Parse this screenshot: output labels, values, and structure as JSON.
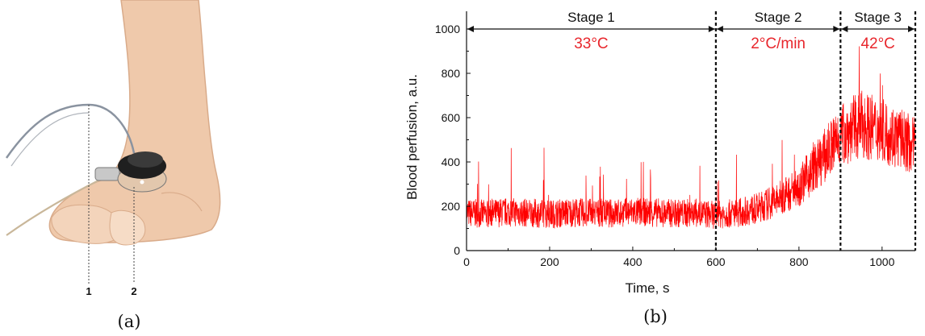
{
  "panels": {
    "a": {
      "caption": "(a)",
      "sensor_labels": [
        "1",
        "2"
      ]
    },
    "b": {
      "caption": "(b)"
    }
  },
  "chart_data": {
    "type": "line",
    "title": "",
    "xlabel": "Time, s",
    "ylabel": "Blood perfusion, a.u.",
    "xlim": [
      0,
      1080
    ],
    "ylim": [
      0,
      1080
    ],
    "xticks": [
      0,
      200,
      400,
      600,
      800,
      1000
    ],
    "yticks": [
      0,
      200,
      400,
      600,
      800,
      1000
    ],
    "grid": false,
    "line_color": "#ff0000",
    "annotation_color": "#e8262c",
    "stage_boundaries": [
      600,
      900,
      1080
    ],
    "stages": [
      {
        "label": "Stage 1",
        "value": "33°C",
        "start": 0,
        "end": 600
      },
      {
        "label": "Stage 2",
        "value": "2°C/min",
        "start": 600,
        "end": 900
      },
      {
        "label": "Stage 3",
        "value": "42°C",
        "start": 900,
        "end": 1080
      }
    ],
    "series": [
      {
        "x": [
          0,
          50,
          100,
          150,
          200,
          250,
          300,
          350,
          400,
          450,
          500,
          550,
          600,
          650,
          700,
          750,
          800,
          850,
          900,
          950,
          1000,
          1050,
          1080
        ],
        "y": [
          170,
          165,
          175,
          170,
          165,
          172,
          170,
          168,
          175,
          172,
          168,
          170,
          160,
          170,
          190,
          230,
          290,
          400,
          520,
          570,
          540,
          500,
          470
        ]
      }
    ]
  }
}
